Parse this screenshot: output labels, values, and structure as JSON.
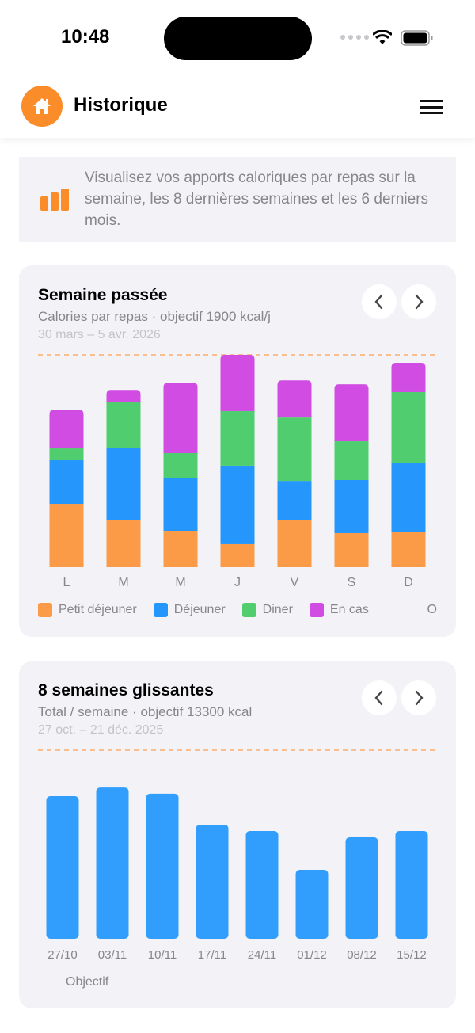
{
  "status_bar": {
    "time": "10:48"
  },
  "header": {
    "title": "Historique",
    "home_icon": "house-icon",
    "menu_icon": "hamburger-icon"
  },
  "info": {
    "text": "Visualisez vos apports caloriques par repas sur la semaine, les 8 dernières semaines et les 6 derniers mois.",
    "icon": "bar-chart-icon"
  },
  "colors": {
    "accent": "#fb8c2a",
    "petit_dejeuner": "#fb9b47",
    "dejeuner": "#2496fc",
    "diner": "#50cd6e",
    "en_cas": "#d04ce2",
    "weekly_bar": "#319dfc",
    "goal_line": "#fbac6a"
  },
  "chart_data": [
    {
      "type": "bar",
      "stacked": true,
      "title": "Semaine passée",
      "subtitle": "Calories par repas · objectif 1900 kcal/j",
      "range": "30 mars – 5 avr. 2026",
      "goal": 1900,
      "ylim": [
        0,
        1900
      ],
      "categories": [
        "L",
        "M",
        "M",
        "J",
        "V",
        "S",
        "D"
      ],
      "series": [
        {
          "name": "Petit déjeuner",
          "values": [
            567,
            425,
            326,
            206,
            425,
            305,
            312
          ]
        },
        {
          "name": "Déjeuner",
          "values": [
            390,
            645,
            475,
            702,
            347,
            475,
            617
          ]
        },
        {
          "name": "Diner",
          "values": [
            106,
            411,
            220,
            489,
            567,
            347,
            638
          ]
        },
        {
          "name": "En cas",
          "values": [
            347,
            106,
            631,
            503,
            333,
            510,
            262
          ]
        }
      ],
      "legend_extra": "O",
      "legend": "bottom"
    },
    {
      "type": "bar",
      "title": "8 semaines glissantes",
      "subtitle": "Total / semaine · objectif 13300 kcal",
      "range": "27 oct. – 21 déc. 2025",
      "goal": 13300,
      "ylim": [
        0,
        13300
      ],
      "categories": [
        "27/10",
        "03/11",
        "10/11",
        "17/11",
        "24/11",
        "01/12",
        "08/12",
        "15/12"
      ],
      "values": [
        10060,
        10670,
        10230,
        8050,
        7600,
        4860,
        7150,
        7600
      ],
      "legend_label": "Objectif"
    }
  ]
}
